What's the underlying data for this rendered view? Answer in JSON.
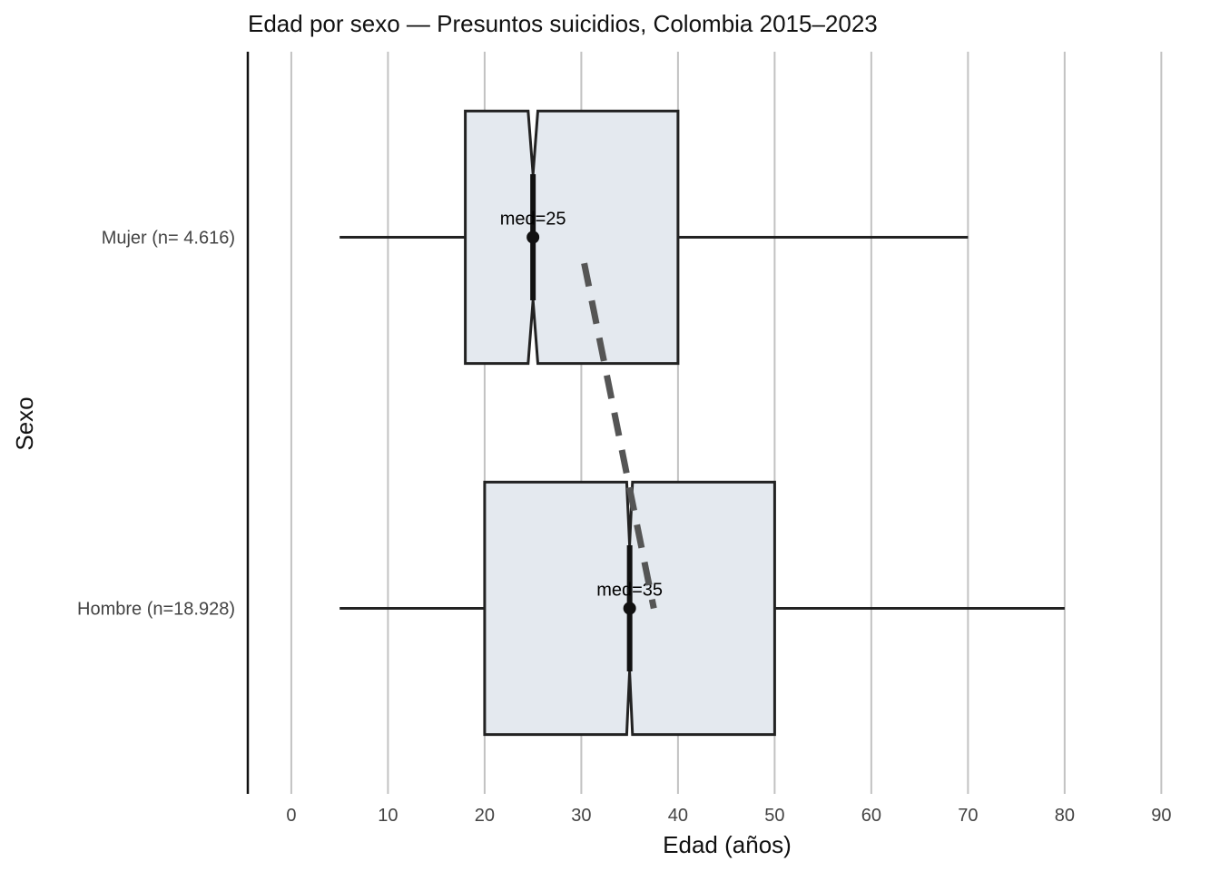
{
  "chart_data": {
    "type": "boxplot",
    "orientation": "horizontal",
    "title": "Edad por sexo — Presuntos suicidios, Colombia 2015–2023",
    "xlabel": "Edad (años)",
    "ylabel": "Sexo",
    "xlim": [
      -4.5,
      91
    ],
    "xticks": [
      0,
      10,
      20,
      30,
      40,
      50,
      60,
      70,
      80,
      90
    ],
    "grid": "vertical",
    "notched": true,
    "colors": {
      "box_fill": "#e4e9ef",
      "box_stroke": "#222222",
      "grid": "#c2c2c2",
      "mean_line": "#555555",
      "median_point": "#111111"
    },
    "groups": [
      {
        "label": "Mujer  (n= 4.616)",
        "whisker_low": 5,
        "q1": 18,
        "median": 25,
        "q3": 40,
        "whisker_high": 70,
        "notch_low": 24.5,
        "notch_high": 25.5,
        "ci_low": 23.7,
        "ci_high": 26.3,
        "annotation": "med=25"
      },
      {
        "label": "Hombre  (n=18.928)",
        "whisker_low": 5,
        "q1": 20,
        "median": 35,
        "q3": 50,
        "whisker_high": 80,
        "notch_low": 34.7,
        "notch_high": 35.3,
        "ci_low": 34.0,
        "ci_high": 36.0,
        "annotation": "med=35"
      }
    ],
    "dashed_line": {
      "from": [
        30.3,
        "Mujer"
      ],
      "to": [
        37.5,
        "Hombre"
      ]
    }
  }
}
